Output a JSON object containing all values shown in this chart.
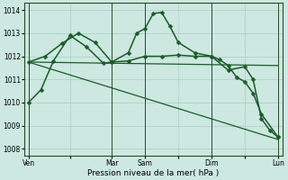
{
  "bg_color": "#cce8e0",
  "grid_color": "#aaccc4",
  "line_color": "#1a5c2a",
  "ylim": [
    1007.7,
    1014.3
  ],
  "yticks": [
    1008,
    1009,
    1010,
    1011,
    1012,
    1013,
    1014
  ],
  "xlabel": "Pression niveau de la mer( hPa )",
  "xtick_labels": [
    "Ven",
    "",
    "Mar",
    "Sam",
    "",
    "Dim",
    "",
    "Lun"
  ],
  "xtick_positions": [
    0,
    5,
    10,
    14,
    18,
    22,
    26,
    30
  ],
  "vlines": [
    0,
    10,
    14,
    22,
    30
  ],
  "series": [
    {
      "x": [
        0,
        1.5,
        3,
        5,
        7,
        9,
        10,
        12,
        13,
        14,
        15,
        16,
        17,
        18,
        20,
        22,
        23,
        24,
        25,
        26,
        27,
        28,
        30
      ],
      "y": [
        1010.0,
        1010.55,
        1011.8,
        1012.9,
        1012.4,
        1011.7,
        1011.75,
        1012.15,
        1013.0,
        1013.2,
        1013.85,
        1013.9,
        1013.3,
        1012.6,
        1012.15,
        1012.0,
        1011.85,
        1011.6,
        1011.1,
        1010.9,
        1010.4,
        1009.5,
        1008.5
      ],
      "marker": "D",
      "markersize": 2.5,
      "linewidth": 1.1
    },
    {
      "x": [
        0,
        2,
        4,
        6,
        8,
        10,
        12,
        14,
        16,
        18,
        20,
        22,
        24,
        26,
        27,
        28,
        29,
        30
      ],
      "y": [
        1011.75,
        1012.0,
        1012.55,
        1013.0,
        1012.6,
        1011.75,
        1011.8,
        1012.0,
        1012.0,
        1012.05,
        1012.0,
        1012.0,
        1011.4,
        1011.55,
        1011.0,
        1009.3,
        1008.8,
        1008.5
      ],
      "marker": "D",
      "markersize": 2.5,
      "linewidth": 1.1
    },
    {
      "x": [
        0,
        30
      ],
      "y": [
        1011.75,
        1011.6
      ],
      "marker": null,
      "markersize": 0,
      "linewidth": 0.9
    },
    {
      "x": [
        0,
        30
      ],
      "y": [
        1011.75,
        1008.4
      ],
      "marker": null,
      "markersize": 0,
      "linewidth": 0.9
    }
  ]
}
